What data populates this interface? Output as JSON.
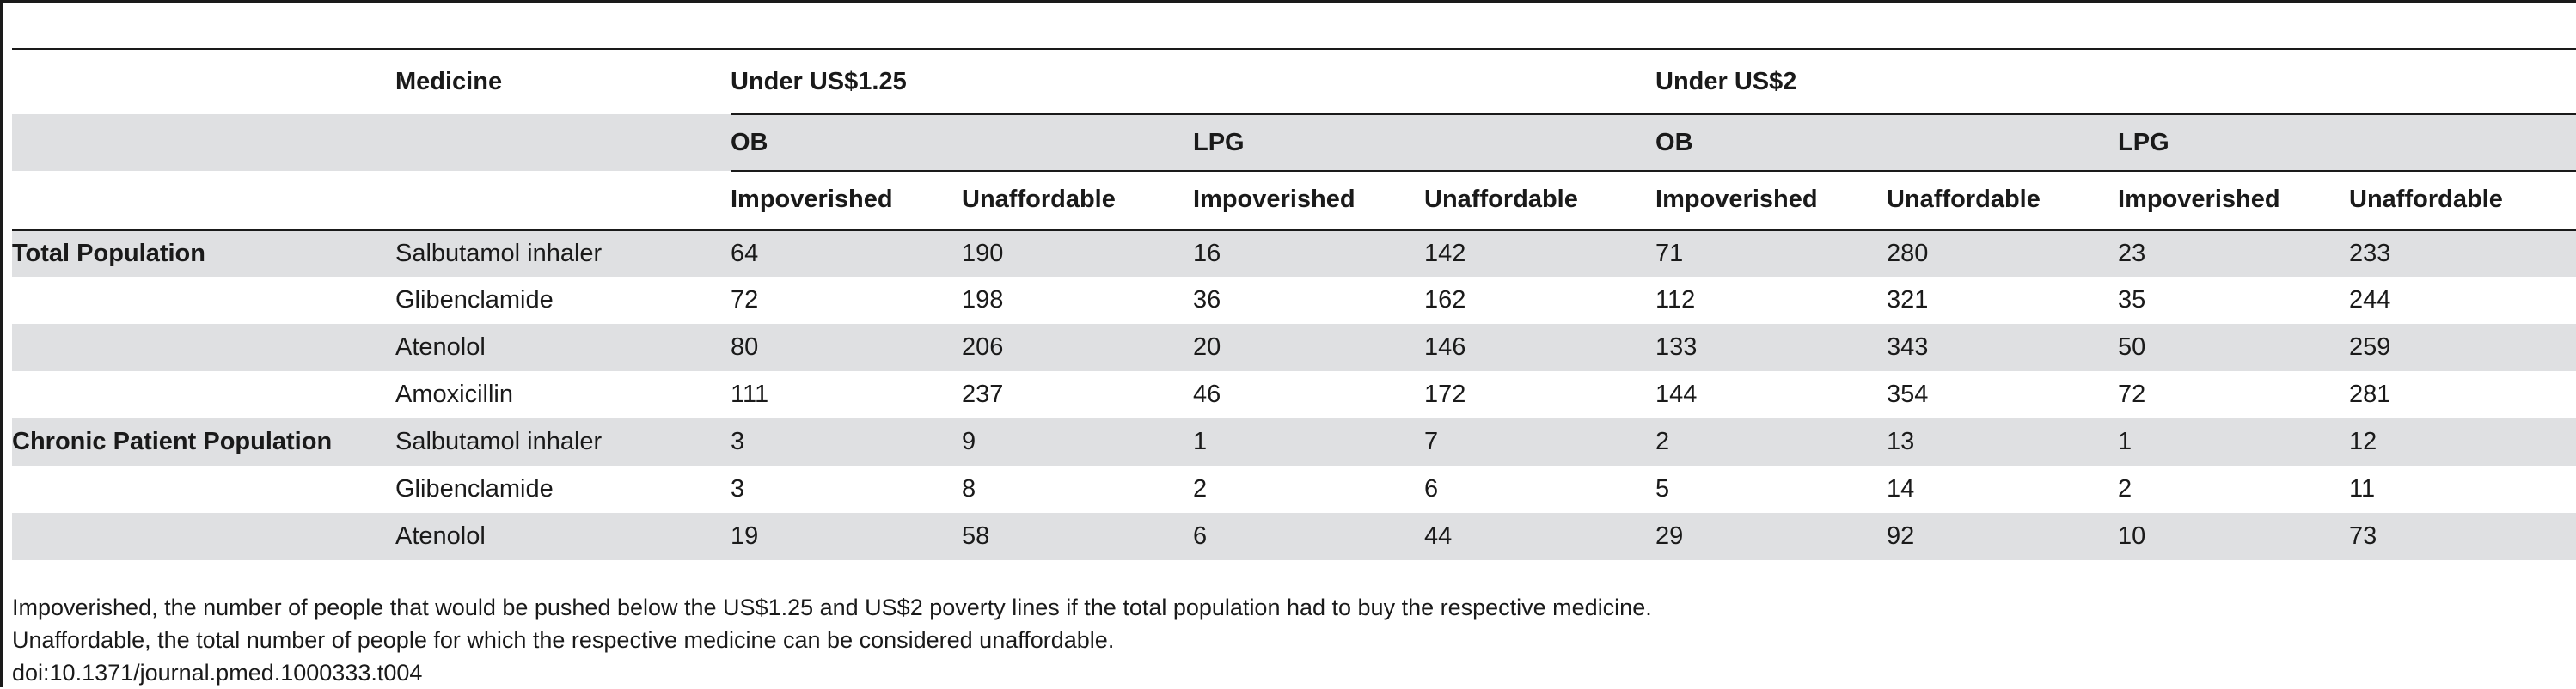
{
  "table": {
    "header": {
      "medicine": "Medicine",
      "group_125": "Under US$1.25",
      "group_2": "Under US$2",
      "ob": "OB",
      "lpg": "LPG",
      "impoverished": "Impoverished",
      "unaffordable": "Unaffordable"
    },
    "rows": [
      {
        "section": "Total Population",
        "medicine": "Salbutamol inhaler",
        "values": [
          "64",
          "190",
          "16",
          "142",
          "71",
          "280",
          "23",
          "233"
        ]
      },
      {
        "section": "",
        "medicine": "Glibenclamide",
        "values": [
          "72",
          "198",
          "36",
          "162",
          "112",
          "321",
          "35",
          "244"
        ]
      },
      {
        "section": "",
        "medicine": "Atenolol",
        "values": [
          "80",
          "206",
          "20",
          "146",
          "133",
          "343",
          "50",
          "259"
        ]
      },
      {
        "section": "",
        "medicine": "Amoxicillin",
        "values": [
          "111",
          "237",
          "46",
          "172",
          "144",
          "354",
          "72",
          "281"
        ]
      },
      {
        "section": "Chronic Patient Population",
        "medicine": "Salbutamol inhaler",
        "values": [
          "3",
          "9",
          "1",
          "7",
          "2",
          "13",
          "1",
          "12"
        ]
      },
      {
        "section": "",
        "medicine": "Glibenclamide",
        "values": [
          "3",
          "8",
          "2",
          "6",
          "5",
          "14",
          "2",
          "11"
        ]
      },
      {
        "section": "",
        "medicine": "Atenolol",
        "values": [
          "19",
          "58",
          "6",
          "44",
          "29",
          "92",
          "10",
          "73"
        ]
      }
    ]
  },
  "notes": {
    "impoverished": "Impoverished, the number of people that would be pushed below the US$1.25 and US$2 poverty lines if the total population had to buy the respective medicine.",
    "unaffordable": "Unaffordable, the total number of people for which the respective medicine can be considered unaffordable.",
    "doi": "doi:10.1371/journal.pmed.1000333.t004"
  }
}
